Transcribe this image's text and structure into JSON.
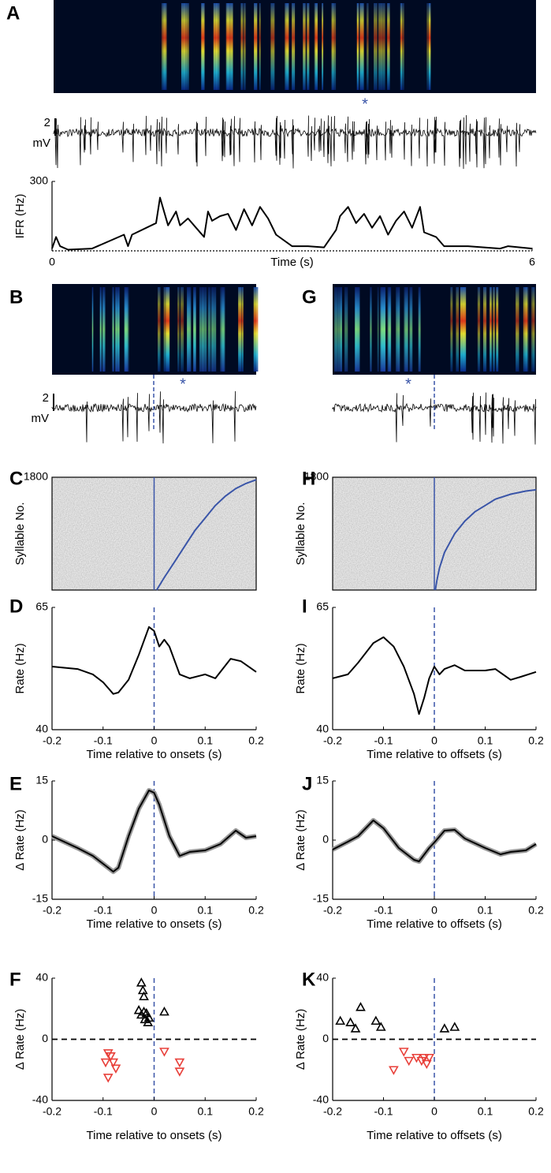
{
  "chart_data": [
    {
      "type": "trace",
      "panel": "A",
      "annotation": "*",
      "scale_label": "2",
      "scale_unit": "mV"
    },
    {
      "type": "line",
      "xlabel": "Time (s)",
      "ylabel": "IFR (Hz)",
      "color": "#000000",
      "x": [
        0,
        0.05,
        0.1,
        0.2,
        0.5,
        0.9,
        0.95,
        1.0,
        1.3,
        1.35,
        1.45,
        1.55,
        1.6,
        1.7,
        1.8,
        1.9,
        1.95,
        2.0,
        2.1,
        2.2,
        2.3,
        2.4,
        2.5,
        2.6,
        2.7,
        2.8,
        3.0,
        3.2,
        3.4,
        3.55,
        3.6,
        3.7,
        3.8,
        3.9,
        4.0,
        4.1,
        4.2,
        4.3,
        4.4,
        4.5,
        4.6,
        4.65,
        4.8,
        4.9,
        5.2,
        5.6,
        5.7,
        6.0
      ],
      "values": [
        10,
        60,
        20,
        5,
        10,
        70,
        20,
        70,
        120,
        230,
        110,
        170,
        110,
        140,
        100,
        60,
        170,
        130,
        150,
        160,
        90,
        180,
        110,
        190,
        140,
        70,
        20,
        20,
        15,
        90,
        150,
        190,
        120,
        160,
        100,
        150,
        70,
        130,
        170,
        100,
        190,
        80,
        60,
        20,
        20,
        10,
        20,
        10
      ],
      "xlim": [
        0,
        6
      ],
      "xticks": [
        0,
        6
      ],
      "ylim": [
        0,
        300
      ],
      "yticks": [
        300
      ]
    },
    {
      "type": "trace",
      "panel": "B",
      "annotation": "*",
      "scale_label": "2",
      "scale_unit": "mV"
    },
    {
      "type": "trace",
      "panel": "G",
      "annotation": "*"
    },
    {
      "type": "raster",
      "panel": "C",
      "ylabel": "Syllable No.",
      "xlim": [
        -0.2,
        0.2
      ],
      "ylim": [
        0,
        1800
      ],
      "yticks": [
        1800
      ],
      "series": [
        {
          "color": "#3a55a8",
          "x": [
            0.005,
            0.02,
            0.04,
            0.06,
            0.08,
            0.1,
            0.12,
            0.14,
            0.16,
            0.18,
            0.2
          ],
          "values": [
            0,
            200,
            450,
            700,
            950,
            1150,
            1350,
            1500,
            1620,
            1700,
            1760
          ]
        }
      ]
    },
    {
      "type": "raster",
      "panel": "H",
      "ylabel": "Syllable No.",
      "xlim": [
        -0.2,
        0.2
      ],
      "ylim": [
        0,
        1800
      ],
      "yticks": [
        1800
      ],
      "series": [
        {
          "color": "#3a55a8",
          "x": [
            0.002,
            0.005,
            0.01,
            0.02,
            0.04,
            0.06,
            0.08,
            0.1,
            0.12,
            0.15,
            0.18,
            0.2
          ],
          "values": [
            0,
            150,
            350,
            600,
            900,
            1100,
            1250,
            1350,
            1450,
            1530,
            1580,
            1600
          ]
        }
      ]
    },
    {
      "type": "line",
      "panel": "D",
      "xlabel": "Time relative to onsets (s)",
      "ylabel": "Rate (Hz)",
      "color": "#000000",
      "x": [
        -0.2,
        -0.15,
        -0.12,
        -0.1,
        -0.08,
        -0.07,
        -0.05,
        -0.03,
        -0.01,
        0,
        0.01,
        0.02,
        0.03,
        0.05,
        0.07,
        0.1,
        0.12,
        0.15,
        0.17,
        0.2
      ],
      "values": [
        52.9,
        52.4,
        51.3,
        49.7,
        47.3,
        47.6,
        50.2,
        55.3,
        61,
        60.2,
        57,
        58.4,
        57,
        51.3,
        50.5,
        51.3,
        50.5,
        54.5,
        54,
        51.8
      ],
      "xlim": [
        -0.2,
        0.2
      ],
      "xticks": [
        -0.2,
        -0.1,
        0,
        0.1,
        0.2
      ],
      "ylim": [
        40,
        65
      ],
      "yticks": [
        40,
        65
      ]
    },
    {
      "type": "line",
      "panel": "I",
      "xlabel": "Time relative to offsets (s)",
      "ylabel": "Rate (Hz)",
      "color": "#000000",
      "x": [
        -0.2,
        -0.17,
        -0.15,
        -0.12,
        -0.1,
        -0.08,
        -0.06,
        -0.04,
        -0.03,
        -0.02,
        -0.01,
        0,
        0.01,
        0.02,
        0.04,
        0.06,
        0.1,
        0.12,
        0.15,
        0.17,
        0.2
      ],
      "values": [
        50.5,
        51.3,
        53.7,
        57.7,
        58.9,
        57,
        52.9,
        47.3,
        43.2,
        46.5,
        50.5,
        52.9,
        51.3,
        52.4,
        53.2,
        52.1,
        52.1,
        52.4,
        50.2,
        50.8,
        51.8
      ],
      "xlim": [
        -0.2,
        0.2
      ],
      "xticks": [
        -0.2,
        -0.1,
        0,
        0.1,
        0.2
      ],
      "ylim": [
        40,
        65
      ],
      "yticks": [
        40,
        65
      ]
    },
    {
      "type": "line",
      "panel": "E",
      "xlabel": "Time relative to onsets (s)",
      "ylabel": "Δ Rate (Hz)",
      "color": "#000000",
      "x": [
        -0.2,
        -0.15,
        -0.12,
        -0.1,
        -0.08,
        -0.07,
        -0.05,
        -0.03,
        -0.01,
        0,
        0.01,
        0.03,
        0.05,
        0.07,
        0.1,
        0.13,
        0.16,
        0.18,
        0.2
      ],
      "values": [
        1,
        -2,
        -4,
        -6,
        -8,
        -7,
        1,
        8,
        12.6,
        12,
        9,
        1,
        -4,
        -3,
        -2.6,
        -1,
        2.4,
        0.6,
        1
      ],
      "xlim": [
        -0.2,
        0.2
      ],
      "xticks": [
        -0.2,
        -0.1,
        0,
        0.1,
        0.2
      ],
      "ylim": [
        -15,
        15
      ],
      "yticks": [
        -15,
        0,
        15
      ]
    },
    {
      "type": "line",
      "panel": "J",
      "xlabel": "Time relative to offsets (s)",
      "ylabel": "Δ Rate (Hz)",
      "color": "#000000",
      "x": [
        -0.2,
        -0.17,
        -0.15,
        -0.12,
        -0.1,
        -0.07,
        -0.04,
        -0.03,
        -0.01,
        0,
        0.02,
        0.04,
        0.06,
        0.1,
        0.13,
        0.15,
        0.18,
        0.2
      ],
      "values": [
        -2.4,
        -0.4,
        1,
        5,
        3,
        -2,
        -5,
        -5.4,
        -2,
        -0.6,
        2.4,
        2.6,
        0.4,
        -2,
        -3.6,
        -3,
        -2.6,
        -1
      ],
      "xlim": [
        -0.2,
        0.2
      ],
      "xticks": [
        -0.2,
        -0.1,
        0,
        0.1,
        0.2
      ],
      "ylim": [
        -15,
        15
      ],
      "yticks": [
        -15,
        0,
        15
      ]
    },
    {
      "type": "scatter",
      "panel": "F",
      "xlabel": "Time relative to onsets (s)",
      "ylabel": "Δ Rate (Hz)",
      "xlim": [
        -0.2,
        0.2
      ],
      "xticks": [
        -0.2,
        -0.1,
        0,
        0.1,
        0.2
      ],
      "ylim": [
        -40,
        40
      ],
      "yticks": [
        -40,
        0,
        40
      ],
      "series": [
        {
          "color": "#000000",
          "marker": "^",
          "x": [
            -0.025,
            -0.022,
            -0.02,
            -0.03,
            -0.02,
            -0.015,
            -0.025,
            -0.01,
            -0.018,
            -0.012,
            0.02
          ],
          "values": [
            37,
            32,
            28,
            19,
            18,
            17,
            16,
            14,
            13,
            11,
            18
          ]
        },
        {
          "color": "#e8403a",
          "marker": "v",
          "x": [
            -0.09,
            -0.085,
            -0.095,
            -0.08,
            -0.075,
            -0.09,
            0.02,
            0.05,
            0.05
          ],
          "values": [
            -9,
            -11,
            -15,
            -15,
            -19,
            -25,
            -8,
            -15,
            -21
          ]
        }
      ]
    },
    {
      "type": "scatter",
      "panel": "K",
      "xlabel": "Time relative to offsets (s)",
      "ylabel": "Δ Rate (Hz)",
      "xlim": [
        -0.2,
        0.2
      ],
      "xticks": [
        -0.2,
        -0.1,
        0,
        0.1,
        0.2
      ],
      "ylim": [
        -40,
        40
      ],
      "yticks": [
        -40,
        0,
        40
      ],
      "series": [
        {
          "color": "#000000",
          "marker": "^",
          "x": [
            -0.185,
            -0.165,
            -0.145,
            -0.155,
            -0.115,
            -0.105,
            0.02,
            0.04
          ],
          "values": [
            12,
            11,
            21,
            7,
            12,
            8,
            7,
            8
          ]
        },
        {
          "color": "#e8403a",
          "marker": "v",
          "x": [
            -0.08,
            -0.06,
            -0.05,
            -0.035,
            -0.02,
            -0.025,
            -0.015,
            -0.01
          ],
          "values": [
            -20,
            -8,
            -14,
            -12,
            -12,
            -14,
            -16,
            -12
          ]
        }
      ]
    }
  ]
}
